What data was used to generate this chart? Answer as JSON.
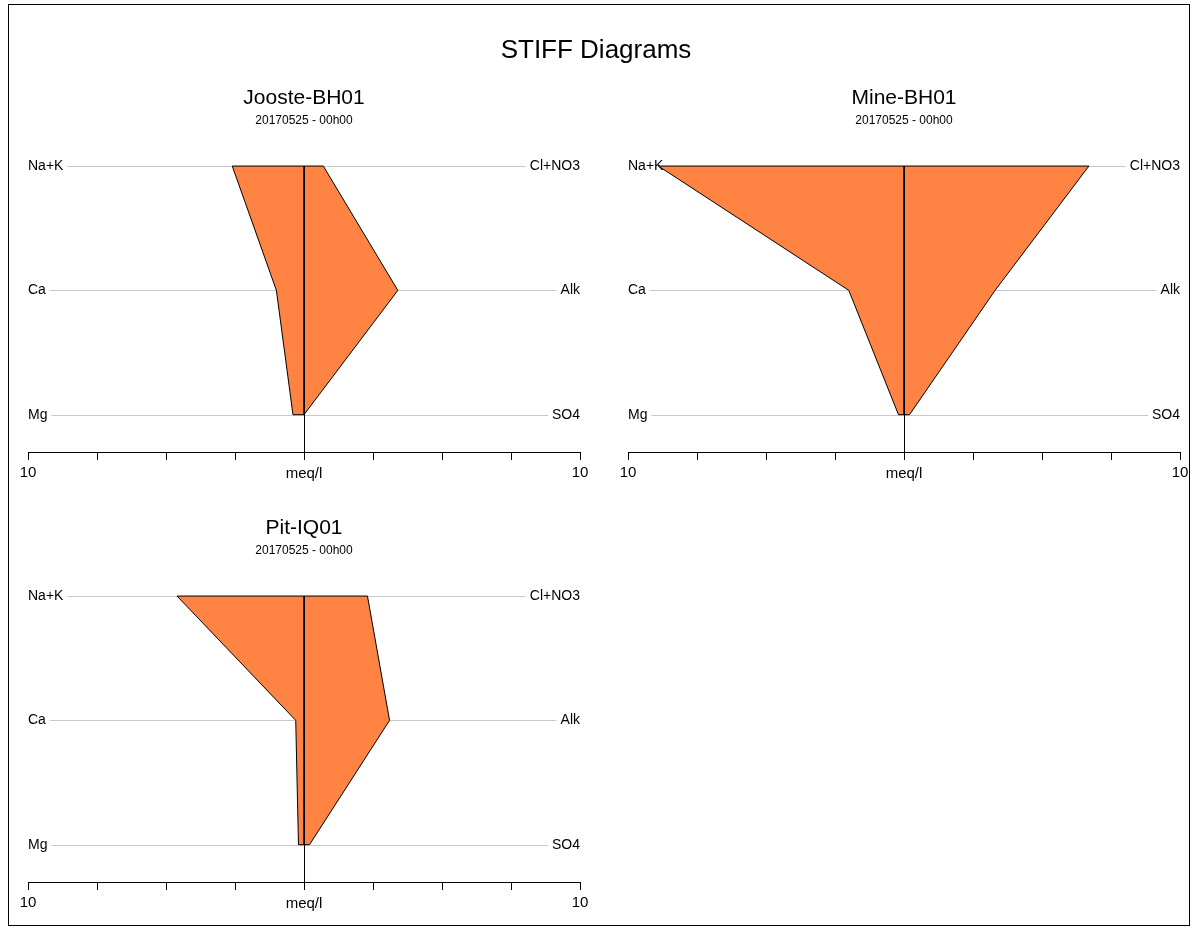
{
  "chart_data": [
    {
      "type": "area",
      "orientation": "horizontal",
      "title": "Jooste-BH01",
      "subtitle": "20170525 - 00h00",
      "annotations": [
        "STIFF Diagrams"
      ],
      "xlabel": "meq/l",
      "categories": [
        "Na+K",
        "Ca",
        "Mg"
      ],
      "y2_categories": [
        "Cl+NO3",
        "Alk",
        "SO4"
      ],
      "xlim": [
        -10,
        10
      ],
      "xticks": [
        {
          "value": -10,
          "label": "10"
        },
        {
          "value": -7.5,
          "label": null
        },
        {
          "value": -5,
          "label": null
        },
        {
          "value": -2.5,
          "label": null
        },
        {
          "value": 0,
          "label": null
        },
        {
          "value": 2.5,
          "label": null
        },
        {
          "value": 5,
          "label": null
        },
        {
          "value": 7.5,
          "label": null
        },
        {
          "value": 10,
          "label": "10"
        }
      ],
      "grid": "y",
      "legend": false,
      "series": [
        {
          "color": "#ff8443",
          "values": [
            -2.6,
            -1.0,
            -0.4
          ]
        },
        {
          "color": "#ff8443",
          "values": [
            0.7,
            3.4,
            0.0
          ]
        }
      ]
    },
    {
      "type": "area",
      "orientation": "horizontal",
      "title": "Mine-BH01",
      "subtitle": "20170525 - 00h00",
      "xlabel": "meq/l",
      "categories": [
        "Na+K",
        "Ca",
        "Mg"
      ],
      "y2_categories": [
        "Cl+NO3",
        "Alk",
        "SO4"
      ],
      "xlim": [
        -10,
        10
      ],
      "xticks": [
        {
          "value": -10,
          "label": "10"
        },
        {
          "value": -7.5,
          "label": null
        },
        {
          "value": -5,
          "label": null
        },
        {
          "value": -2.5,
          "label": null
        },
        {
          "value": 0,
          "label": null
        },
        {
          "value": 2.5,
          "label": null
        },
        {
          "value": 5,
          "label": null
        },
        {
          "value": 7.5,
          "label": null
        },
        {
          "value": 10,
          "label": "10"
        }
      ],
      "grid": "y",
      "legend": false,
      "series": [
        {
          "color": "#ff8443",
          "values": [
            -8.9,
            -2.0,
            -0.2
          ]
        },
        {
          "color": "#ff8443",
          "values": [
            6.7,
            3.3,
            0.2
          ]
        }
      ]
    },
    {
      "type": "area",
      "orientation": "horizontal",
      "title": "Pit-IQ01",
      "subtitle": "20170525 - 00h00",
      "xlabel": "meq/l",
      "categories": [
        "Na+K",
        "Ca",
        "Mg"
      ],
      "y2_categories": [
        "Cl+NO3",
        "Alk",
        "SO4"
      ],
      "xlim": [
        -10,
        10
      ],
      "xticks": [
        {
          "value": -10,
          "label": "10"
        },
        {
          "value": -7.5,
          "label": null
        },
        {
          "value": -5,
          "label": null
        },
        {
          "value": -2.5,
          "label": null
        },
        {
          "value": 0,
          "label": null
        },
        {
          "value": 2.5,
          "label": null
        },
        {
          "value": 5,
          "label": null
        },
        {
          "value": 7.5,
          "label": null
        },
        {
          "value": 10,
          "label": "10"
        }
      ],
      "grid": "y",
      "legend": false,
      "series": [
        {
          "color": "#ff8443",
          "values": [
            -4.6,
            -0.3,
            -0.2
          ]
        },
        {
          "color": "#ff8443",
          "values": [
            2.3,
            3.1,
            0.2
          ]
        }
      ]
    }
  ]
}
